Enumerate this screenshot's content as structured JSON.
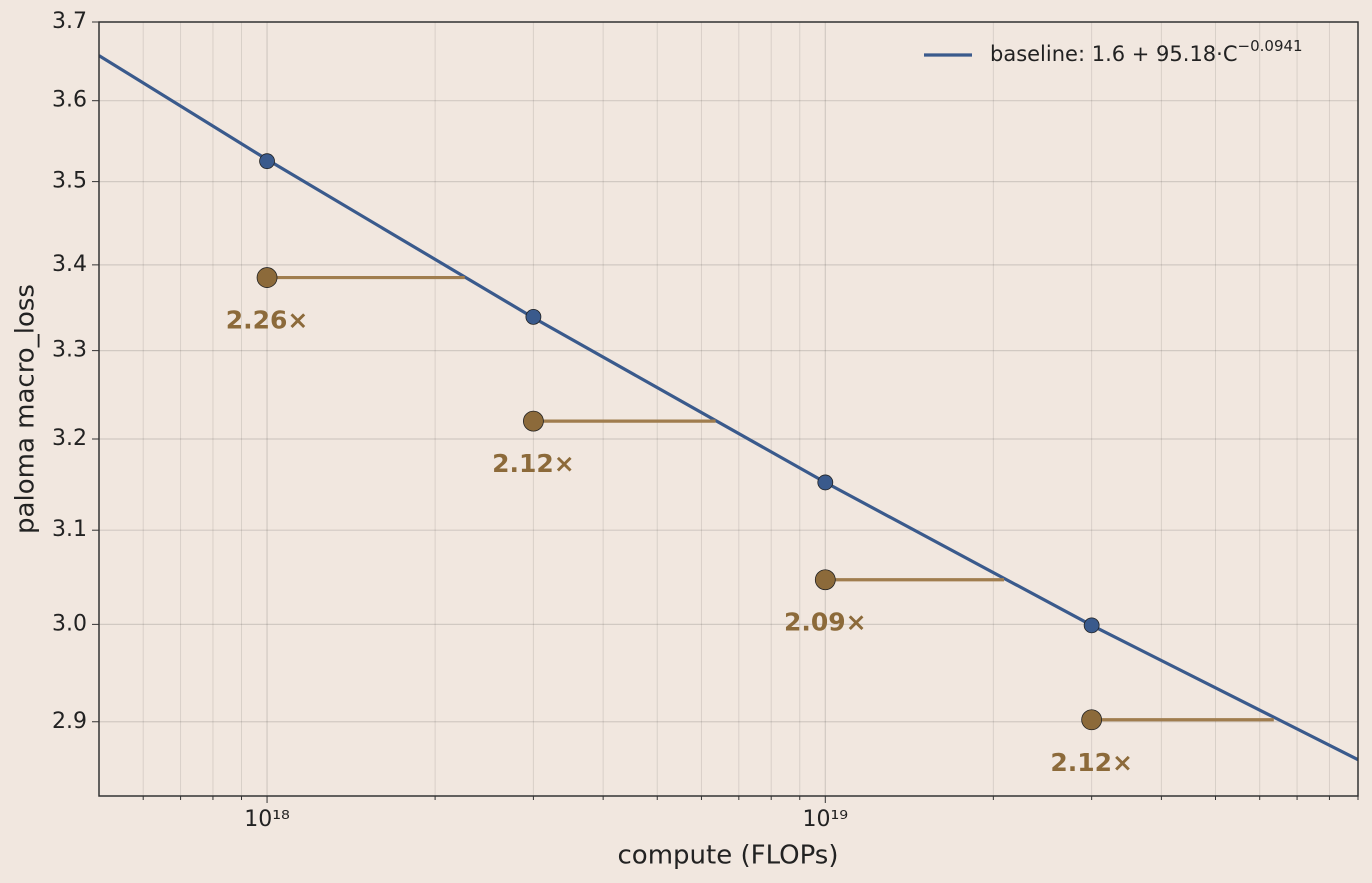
{
  "chart_data": {
    "type": "line",
    "xlabel": "compute (FLOPs)",
    "ylabel": "paloma macro_loss",
    "xscale": "log",
    "yscale": "log",
    "grid": true,
    "legend_loc": "upper right",
    "xlim": [
      5e+17,
      9e+19
    ],
    "ylim": [
      2.826,
      3.7
    ],
    "xticks": [
      {
        "value": 1e+18,
        "label": "10¹⁸"
      },
      {
        "value": 1e+19,
        "label": "10¹⁹"
      }
    ],
    "xminorticks": [
      6e+17,
      7e+17,
      8e+17,
      9e+17,
      2e+18,
      3e+18,
      4e+18,
      5e+18,
      6e+18,
      7e+18,
      8e+18,
      9e+18,
      2e+19,
      3e+19,
      4e+19,
      5e+19,
      6e+19,
      7e+19,
      8e+19,
      9e+19
    ],
    "yticks": [
      2.9,
      {
        "value": 3,
        "label": "3.0"
      },
      3.1,
      3.2,
      3.3,
      3.4,
      3.5,
      3.6,
      3.7
    ],
    "series": [
      {
        "name": "baseline: 1.6 + 95.18·C",
        "name_sup": "−0.0941",
        "color": "#3a5a8c",
        "x": [
          5e+17,
          1e+18,
          3e+18,
          1e+19,
          3e+19,
          9e+19
        ],
        "values": [
          3.657,
          3.527,
          3.338,
          3.152,
          2.999,
          2.862
        ]
      }
    ],
    "baseline_points": {
      "color": "#3a5a8c",
      "x": [
        1e+18,
        3e+18,
        1e+19,
        3e+19
      ],
      "values": [
        3.525,
        3.339,
        3.152,
        2.999
      ]
    },
    "improved_points": {
      "color": "#8c6a3a",
      "x": [
        1e+18,
        3e+18,
        1e+19,
        3e+19
      ],
      "values": [
        3.385,
        3.22,
        3.047,
        2.902
      ],
      "match_x": [
        2.26e+18,
        6.36e+18,
        2.09e+19,
        6.36e+19
      ],
      "multipliers": [
        2.26,
        2.12,
        2.09,
        2.12
      ],
      "value_labels": [
        "2.26×",
        "2.12×",
        "2.09×",
        "2.12×"
      ]
    }
  }
}
